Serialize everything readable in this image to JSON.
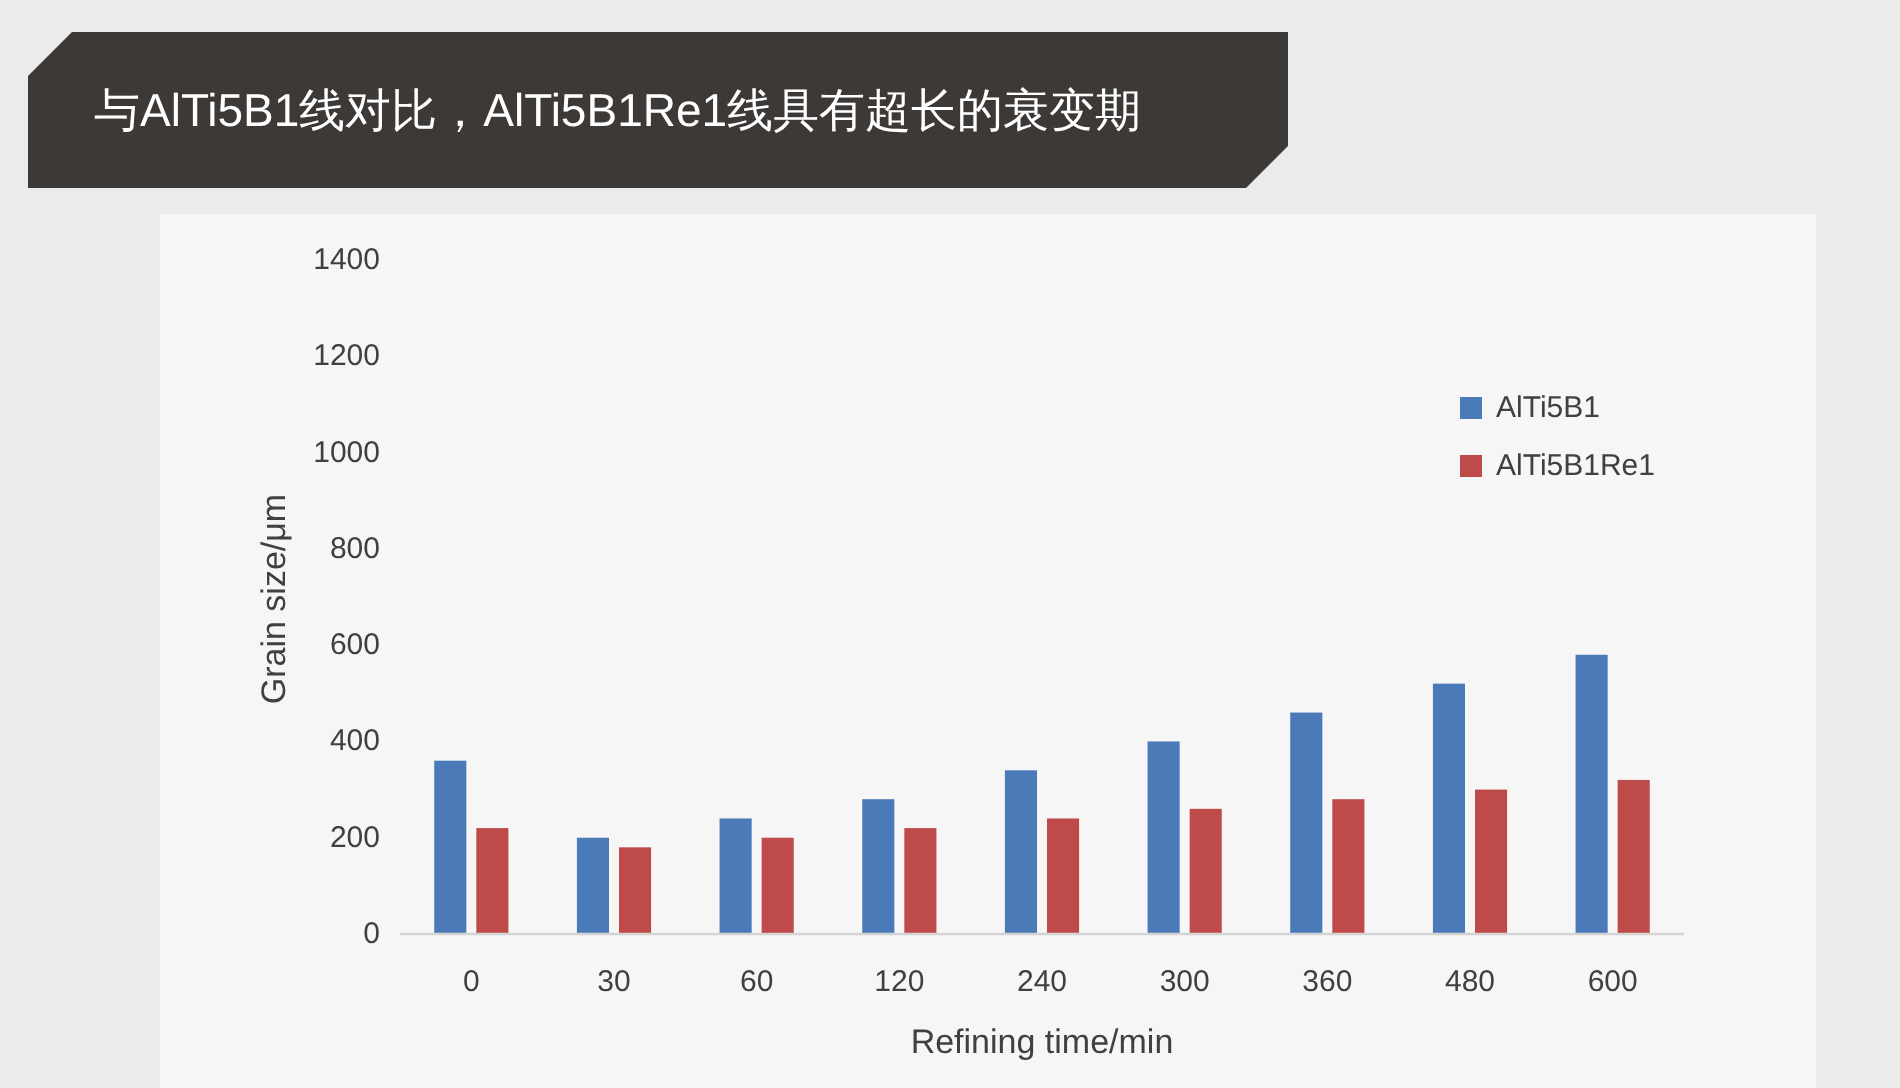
{
  "chart_data": {
    "type": "bar",
    "title": "与AlTi5B1线对比，AlTi5B1Re1线具有超长的衰变期",
    "xlabel": "Refining time/min",
    "ylabel": "Grain size/μm",
    "categories": [
      "0",
      "30",
      "60",
      "120",
      "240",
      "300",
      "360",
      "480",
      "600"
    ],
    "series": [
      {
        "name": "AlTi5B1",
        "color": "#4a7ab7",
        "values": [
          360,
          200,
          240,
          280,
          340,
          400,
          460,
          520,
          580
        ]
      },
      {
        "name": "AlTi5B1Re1",
        "color": "#be4b49",
        "values": [
          220,
          180,
          200,
          220,
          240,
          260,
          280,
          300,
          320
        ]
      }
    ],
    "ylim": [
      0,
      1400
    ],
    "yticks": [
      0,
      200,
      400,
      600,
      800,
      1000,
      1200,
      1400
    ],
    "grid": false,
    "legend": "top right"
  }
}
